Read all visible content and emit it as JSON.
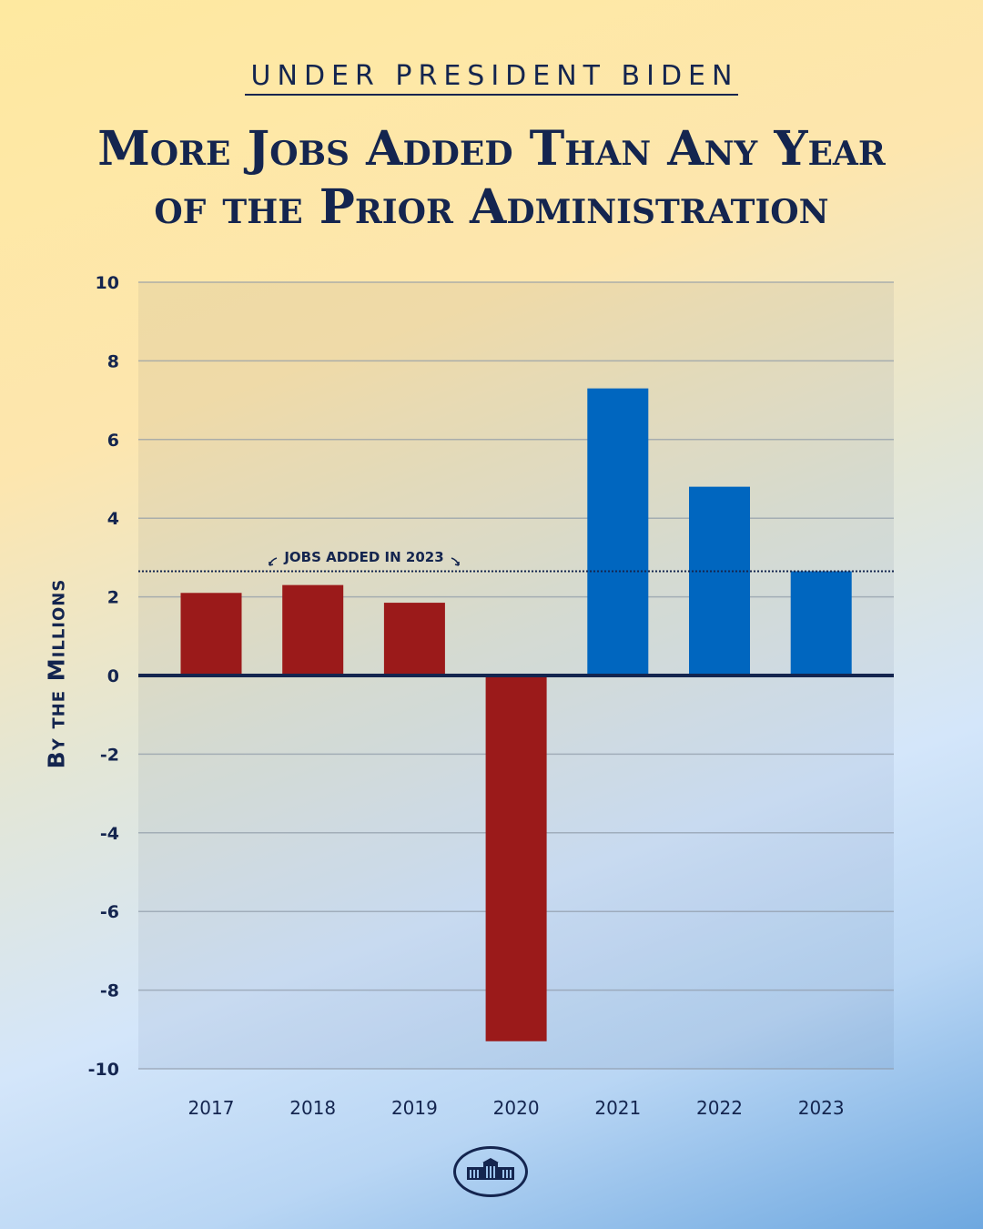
{
  "kicker": "UNDER PRESIDENT BIDEN",
  "title_line1": "More Jobs Added Than Any Year",
  "title_line2": "of the Prior Administration",
  "logo": "White House seal",
  "chart_data": {
    "type": "bar",
    "title": "More Jobs Added Than Any Year of the Prior Administration",
    "ylabel": "By the Millions",
    "xlabel": "",
    "categories": [
      "2017",
      "2018",
      "2019",
      "2020",
      "2021",
      "2022",
      "2023"
    ],
    "values": [
      2.1,
      2.3,
      1.85,
      -9.3,
      7.3,
      4.8,
      2.65
    ],
    "bar_colors": [
      "#9b1a1a",
      "#9b1a1a",
      "#9b1a1a",
      "#9b1a1a",
      "#0066bf",
      "#0066bf",
      "#0066bf"
    ],
    "ylim": [
      -10,
      10
    ],
    "yticks": [
      "-10",
      "-8",
      "-6",
      "-4",
      "-2",
      "0",
      "2",
      "4",
      "6",
      "8",
      "10"
    ],
    "grid": true,
    "reference_line": {
      "value": 2.65,
      "label": "JOBS ADDED IN 2023",
      "style": "dotted"
    }
  }
}
